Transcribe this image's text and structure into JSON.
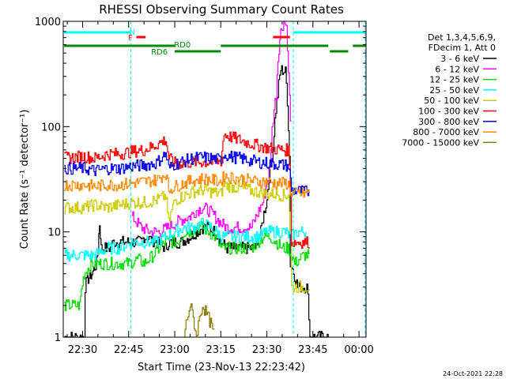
{
  "chart_data": {
    "type": "line",
    "title": "RHESSI Observing Summary Count Rates",
    "xlabel": "Start Time (23-Nov-13 22:23:42)",
    "ylabel": "Count Rate (s⁻¹ detector⁻¹)",
    "yscale": "log",
    "ylim": [
      1,
      1000
    ],
    "xlim_minutes_from_2230": [
      -6.3,
      92.3
    ],
    "x_ticks": [
      {
        "t": 0,
        "label": "22:30"
      },
      {
        "t": 15,
        "label": "22:45"
      },
      {
        "t": 30,
        "label": "23:00"
      },
      {
        "t": 45,
        "label": "23:15"
      },
      {
        "t": 60,
        "label": "23:30"
      },
      {
        "t": 75,
        "label": "23:45"
      },
      {
        "t": 90,
        "label": "00:00"
      }
    ],
    "y_ticks": [
      {
        "v": 1,
        "label": "1"
      },
      {
        "v": 10,
        "label": "10"
      },
      {
        "v": 100,
        "label": "100"
      },
      {
        "v": 1000,
        "label": "1000"
      }
    ],
    "legend_header": [
      "Det 1,3,4,5,6,9,",
      "FDecim 1, Att 0"
    ],
    "legend_position": "right",
    "series": [
      {
        "name": "3 - 6 keV",
        "color": "#000000",
        "points": [
          [
            -6,
            1
          ],
          [
            0.5,
            1
          ],
          [
            0.8,
            3
          ],
          [
            1.5,
            3.5
          ],
          [
            3,
            4
          ],
          [
            4.5,
            5
          ],
          [
            5,
            7
          ],
          [
            5.5,
            12
          ],
          [
            6,
            7
          ],
          [
            9,
            7
          ],
          [
            10,
            8
          ],
          [
            14,
            8
          ],
          [
            16,
            8
          ],
          [
            19,
            8
          ],
          [
            20,
            9
          ],
          [
            24,
            8
          ],
          [
            27,
            7
          ],
          [
            28,
            8
          ],
          [
            30,
            8
          ],
          [
            32,
            8
          ],
          [
            35,
            9
          ],
          [
            37,
            10
          ],
          [
            39,
            11
          ],
          [
            41,
            11
          ],
          [
            43,
            10
          ],
          [
            45,
            8
          ],
          [
            47,
            7
          ],
          [
            50,
            7
          ],
          [
            53,
            7
          ],
          [
            56,
            7
          ],
          [
            58,
            10
          ],
          [
            60,
            20
          ],
          [
            62,
            60
          ],
          [
            63.5,
            200
          ],
          [
            64.5,
            350
          ],
          [
            66,
            330
          ],
          [
            67,
            100
          ],
          [
            67.6,
            5
          ],
          [
            70,
            3
          ],
          [
            72,
            3
          ],
          [
            73,
            3
          ],
          [
            74,
            1
          ],
          [
            76,
            1
          ],
          [
            80,
            1
          ]
        ]
      },
      {
        "name": "6 - 12 keV",
        "color": "#ff00ff",
        "points": [
          [
            16,
            14
          ],
          [
            19,
            11
          ],
          [
            22,
            10
          ],
          [
            25,
            10
          ],
          [
            28,
            11
          ],
          [
            30,
            12
          ],
          [
            32,
            13
          ],
          [
            35,
            14
          ],
          [
            37,
            16
          ],
          [
            39,
            17
          ],
          [
            41,
            16
          ],
          [
            43,
            14
          ],
          [
            45,
            12
          ],
          [
            47,
            11
          ],
          [
            50,
            11
          ],
          [
            53,
            11
          ],
          [
            55,
            11
          ],
          [
            57,
            15
          ],
          [
            59,
            20
          ],
          [
            61,
            40
          ],
          [
            63,
            200
          ],
          [
            64.5,
            800
          ],
          [
            65.5,
            1000
          ],
          [
            66.3,
            900
          ],
          [
            67,
            300
          ],
          [
            68,
            10
          ]
        ]
      },
      {
        "name": "12 - 25 keV",
        "color": "#00dd00",
        "points": [
          [
            -6,
            2
          ],
          [
            -1,
            2
          ],
          [
            0.5,
            4
          ],
          [
            3,
            5
          ],
          [
            6,
            5
          ],
          [
            9,
            5
          ],
          [
            12,
            5
          ],
          [
            15,
            5
          ],
          [
            18,
            5.5
          ],
          [
            20,
            5
          ],
          [
            23,
            6
          ],
          [
            25,
            7
          ],
          [
            27,
            8
          ],
          [
            29,
            8
          ],
          [
            31,
            8
          ],
          [
            33,
            10
          ],
          [
            35,
            10
          ],
          [
            37,
            11
          ],
          [
            39,
            11
          ],
          [
            41,
            10
          ],
          [
            43,
            9
          ],
          [
            45,
            7
          ],
          [
            47,
            7
          ],
          [
            50,
            7
          ],
          [
            53,
            7
          ],
          [
            55,
            7
          ],
          [
            57,
            8
          ],
          [
            59,
            9
          ],
          [
            61,
            9
          ],
          [
            63,
            8
          ],
          [
            65,
            7
          ],
          [
            67,
            7
          ],
          [
            69,
            5
          ],
          [
            72,
            6
          ],
          [
            74,
            6
          ]
        ]
      },
      {
        "name": "25 - 50 keV",
        "color": "#00ffff",
        "points": [
          [
            -6,
            6
          ],
          [
            0.5,
            6
          ],
          [
            4,
            6
          ],
          [
            8,
            7
          ],
          [
            12,
            7
          ],
          [
            16,
            8
          ],
          [
            20,
            8
          ],
          [
            24,
            8
          ],
          [
            27,
            9
          ],
          [
            30,
            10
          ],
          [
            33,
            11
          ],
          [
            36,
            11
          ],
          [
            39,
            12
          ],
          [
            42,
            11
          ],
          [
            45,
            9
          ],
          [
            48,
            9
          ],
          [
            51,
            9
          ],
          [
            54,
            9
          ],
          [
            57,
            9
          ],
          [
            60,
            10
          ],
          [
            63,
            10
          ],
          [
            66,
            10
          ],
          [
            67.6,
            9
          ],
          [
            70,
            10
          ],
          [
            73,
            10
          ]
        ]
      },
      {
        "name": "50 - 100 keV",
        "color": "#cccc00",
        "points": [
          [
            -6,
            17
          ],
          [
            0.5,
            17
          ],
          [
            4,
            18
          ],
          [
            8,
            17
          ],
          [
            12,
            18
          ],
          [
            16,
            19
          ],
          [
            20,
            19
          ],
          [
            24,
            20
          ],
          [
            27,
            22
          ],
          [
            28,
            12
          ],
          [
            30,
            20
          ],
          [
            33,
            22
          ],
          [
            36,
            24
          ],
          [
            39,
            25
          ],
          [
            42,
            24
          ],
          [
            45,
            23
          ],
          [
            46,
            28
          ],
          [
            48,
            27
          ],
          [
            51,
            26
          ],
          [
            54,
            25
          ],
          [
            57,
            24
          ],
          [
            60,
            23
          ],
          [
            63,
            23
          ],
          [
            66,
            22
          ],
          [
            67,
            23
          ],
          [
            68,
            3
          ],
          [
            72,
            3
          ],
          [
            74,
            3
          ]
        ]
      },
      {
        "name": "100 - 300 keV",
        "color": "#ff0000",
        "points": [
          [
            -6,
            50
          ],
          [
            0.5,
            52
          ],
          [
            4,
            50
          ],
          [
            8,
            55
          ],
          [
            12,
            55
          ],
          [
            16,
            58
          ],
          [
            20,
            60
          ],
          [
            23,
            65
          ],
          [
            27,
            75
          ],
          [
            28,
            50
          ],
          [
            30,
            45
          ],
          [
            33,
            45
          ],
          [
            36,
            46
          ],
          [
            39,
            46
          ],
          [
            42,
            46
          ],
          [
            45,
            47
          ],
          [
            46,
            85
          ],
          [
            48,
            80
          ],
          [
            51,
            75
          ],
          [
            54,
            70
          ],
          [
            57,
            66
          ],
          [
            60,
            63
          ],
          [
            63,
            61
          ],
          [
            66,
            60
          ],
          [
            67,
            60
          ],
          [
            68,
            8
          ],
          [
            72,
            8
          ],
          [
            74,
            8
          ]
        ]
      },
      {
        "name": "300 - 800 keV",
        "color": "#0000ee",
        "points": [
          [
            -6,
            40
          ],
          [
            0.5,
            40
          ],
          [
            4,
            38
          ],
          [
            8,
            40
          ],
          [
            12,
            40
          ],
          [
            16,
            42
          ],
          [
            20,
            43
          ],
          [
            24,
            45
          ],
          [
            27,
            55
          ],
          [
            28,
            40
          ],
          [
            30,
            44
          ],
          [
            33,
            47
          ],
          [
            36,
            50
          ],
          [
            39,
            51
          ],
          [
            42,
            50
          ],
          [
            45,
            48
          ],
          [
            46,
            55
          ],
          [
            48,
            52
          ],
          [
            51,
            50
          ],
          [
            54,
            48
          ],
          [
            57,
            46
          ],
          [
            60,
            45
          ],
          [
            63,
            44
          ],
          [
            66,
            43
          ],
          [
            67,
            42
          ],
          [
            68,
            25
          ],
          [
            72,
            24
          ],
          [
            74,
            24
          ]
        ]
      },
      {
        "name": "800 - 7000 keV",
        "color": "#ff8800",
        "points": [
          [
            -6,
            28
          ],
          [
            0.5,
            28
          ],
          [
            4,
            27
          ],
          [
            8,
            28
          ],
          [
            12,
            28
          ],
          [
            16,
            29
          ],
          [
            20,
            30
          ],
          [
            24,
            31
          ],
          [
            27,
            36
          ],
          [
            28,
            25
          ],
          [
            30,
            27
          ],
          [
            33,
            29
          ],
          [
            36,
            31
          ],
          [
            39,
            32
          ],
          [
            42,
            31
          ],
          [
            45,
            30
          ],
          [
            46,
            34
          ],
          [
            48,
            33
          ],
          [
            51,
            32
          ],
          [
            54,
            31
          ],
          [
            57,
            30
          ],
          [
            60,
            30
          ],
          [
            63,
            29
          ],
          [
            66,
            29
          ],
          [
            67,
            28
          ],
          [
            68,
            23
          ],
          [
            72,
            23
          ],
          [
            74,
            24
          ]
        ]
      },
      {
        "name": "7000 - 15000 keV",
        "color": "#887700",
        "points": [
          [
            33,
            1
          ],
          [
            35,
            2
          ],
          [
            37,
            1
          ],
          [
            39,
            2
          ],
          [
            41,
            1.5
          ],
          [
            43,
            1
          ]
        ]
      }
    ],
    "annotations": [
      {
        "label": "N",
        "color": "#00ffff"
      },
      {
        "label": "F",
        "color": "#ff0000"
      },
      {
        "label": "RD0",
        "color": "#008800"
      },
      {
        "label": "RD6",
        "color": "#008800"
      }
    ],
    "footer": "24-Oct-2021 22:28"
  }
}
